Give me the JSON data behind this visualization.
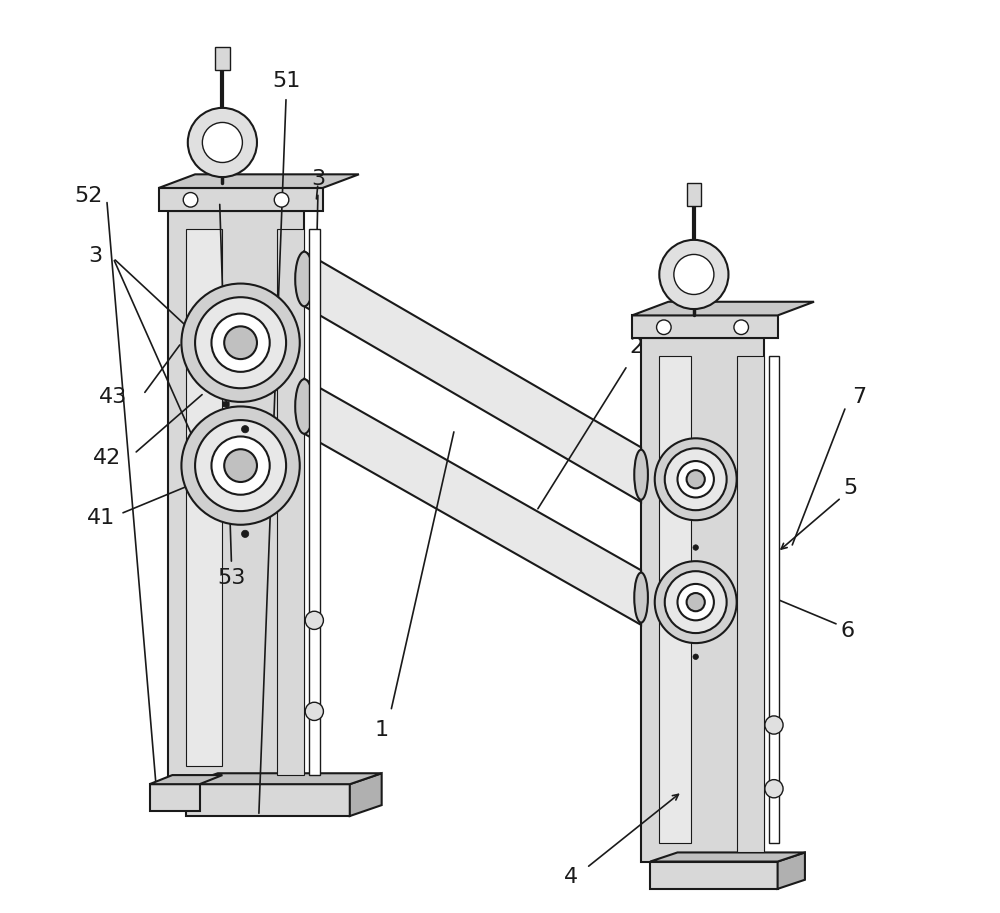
{
  "bg_color": "#ffffff",
  "line_color": "#1a1a1a",
  "fill_light": "#d8d8d8",
  "fill_mid": "#b0b0b0",
  "fill_dark": "#888888",
  "font_size_labels": 16,
  "line_width": 1.5
}
